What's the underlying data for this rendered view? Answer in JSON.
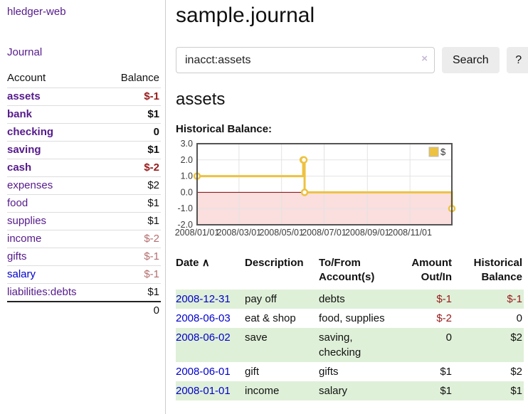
{
  "app": {
    "title": "hledger-web"
  },
  "icons": {
    "sort_asc": "∧",
    "clear": "×"
  },
  "colors": {
    "accent_purple": "#551a8b",
    "link_blue": "#0000cc",
    "negative_strong": "#971a1a",
    "negative_muted": "#b36e6e",
    "row_stripe_green": "#dff0d8",
    "series_yellow": "#edc240"
  },
  "sidebar": {
    "nav": {
      "journal": "Journal"
    },
    "accounts": {
      "header": {
        "account": "Account",
        "balance": "Balance"
      },
      "rows": [
        {
          "name": "assets",
          "balance": "$-1",
          "indent": 0,
          "in_current_filter": true
        },
        {
          "name": "bank",
          "balance": "$1",
          "indent": 1,
          "in_current_filter": true
        },
        {
          "name": "checking",
          "balance": "0",
          "indent": 2,
          "in_current_filter": true
        },
        {
          "name": "saving",
          "balance": "$1",
          "indent": 2,
          "in_current_filter": true
        },
        {
          "name": "cash",
          "balance": "$-2",
          "indent": 1,
          "in_current_filter": true
        },
        {
          "name": "expenses",
          "balance": "$2",
          "indent": 0,
          "in_current_filter": false
        },
        {
          "name": "food",
          "balance": "$1",
          "indent": 1,
          "in_current_filter": false
        },
        {
          "name": "supplies",
          "balance": "$1",
          "indent": 1,
          "in_current_filter": false
        },
        {
          "name": "income",
          "balance": "$-2",
          "indent": 0,
          "in_current_filter": false
        },
        {
          "name": "gifts",
          "balance": "$-1",
          "indent": 1,
          "in_current_filter": false
        },
        {
          "name": "salary",
          "balance": "$-1",
          "indent": 1,
          "in_current_filter": false
        },
        {
          "name": "liabilities:debts",
          "balance": "$1",
          "indent": 0,
          "in_current_filter": false
        }
      ],
      "total": "0"
    }
  },
  "main": {
    "title": "sample.journal",
    "search": {
      "value": "inacct:assets",
      "button_label": "Search",
      "help_label": "?"
    },
    "account_heading": "assets",
    "chart_label": "Historical Balance:"
  },
  "chart_data": {
    "type": "line",
    "style": "steps-with-markers",
    "title": "Historical Balance",
    "series": [
      {
        "name": "$",
        "color": "#edc240",
        "points": [
          [
            "2008-01-01",
            1
          ],
          [
            "2008-06-01",
            2
          ],
          [
            "2008-06-02",
            2
          ],
          [
            "2008-06-03",
            0
          ],
          [
            "2008-12-31",
            -1
          ]
        ]
      }
    ],
    "x_range": [
      "2008-01-01",
      "2008-12-31"
    ],
    "ylim": [
      -2,
      3
    ],
    "y_ticks": [
      3,
      2,
      1,
      0,
      -1,
      -2
    ],
    "x_ticks": [
      {
        "date": "2008-01-01",
        "label": "2008/01/01"
      },
      {
        "date": "2008-03-01",
        "label": "2008/03/01"
      },
      {
        "date": "2008-05-01",
        "label": "2008/05/01"
      },
      {
        "date": "2008-07-01",
        "label": "2008/07/01"
      },
      {
        "date": "2008-09-01",
        "label": "2008/09/01"
      },
      {
        "date": "2008-11-01",
        "label": "2008/11/01"
      }
    ],
    "legend": {
      "position": "top-right",
      "entries": [
        {
          "label": "$",
          "color": "#edc240"
        }
      ]
    },
    "grid": true,
    "zero_line_color": "#800000",
    "negative_region_fill": "#fbdede",
    "border_color": "#545454"
  },
  "register": {
    "headers": {
      "date": "Date",
      "description": "Description",
      "accounts_line1": "To/From",
      "accounts_line2": "Account(s)",
      "amount_line1": "Amount",
      "amount_line2": "Out/In",
      "balance_line1": "Historical",
      "balance_line2": "Balance"
    },
    "rows": [
      {
        "date": "2008-12-31",
        "description": "pay off",
        "accounts": "debts",
        "amount": "$-1",
        "balance": "$-1"
      },
      {
        "date": "2008-06-03",
        "description": "eat & shop",
        "accounts": "food, supplies",
        "amount": "$-2",
        "balance": "0"
      },
      {
        "date": "2008-06-02",
        "description": "save",
        "accounts": "saving, checking",
        "amount": "0",
        "balance": "$2"
      },
      {
        "date": "2008-06-01",
        "description": "gift",
        "accounts": "gifts",
        "amount": "$1",
        "balance": "$2"
      },
      {
        "date": "2008-01-01",
        "description": "income",
        "accounts": "salary",
        "amount": "$1",
        "balance": "$1"
      }
    ]
  }
}
